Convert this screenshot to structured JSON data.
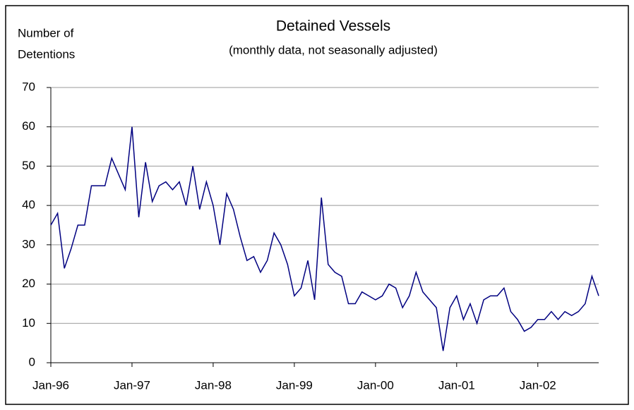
{
  "chart_data": {
    "type": "line",
    "title": "Detained Vessels",
    "subtitle": "(monthly data, not seasonally adjusted)",
    "ylabel": [
      "Number of",
      "Detentions"
    ],
    "categories": [
      "Jan-96",
      null,
      null,
      null,
      null,
      null,
      null,
      null,
      null,
      null,
      null,
      null,
      "Jan-97",
      null,
      null,
      null,
      null,
      null,
      null,
      null,
      null,
      null,
      null,
      null,
      "Jan-98",
      null,
      null,
      null,
      null,
      null,
      null,
      null,
      null,
      null,
      null,
      null,
      "Jan-99",
      null,
      null,
      null,
      null,
      null,
      null,
      null,
      null,
      null,
      null,
      null,
      "Jan-00",
      null,
      null,
      null,
      null,
      null,
      null,
      null,
      null,
      null,
      null,
      null,
      "Jan-01",
      null,
      null,
      null,
      null,
      null,
      null,
      null,
      null,
      null,
      null,
      null,
      "Jan-02",
      null,
      null,
      null,
      null,
      null,
      null,
      null,
      null,
      null
    ],
    "series": [
      {
        "name": "Detained Vessels",
        "color": "#000080",
        "values": [
          35,
          38,
          24,
          29,
          35,
          35,
          45,
          45,
          45,
          52,
          48,
          44,
          60,
          37,
          51,
          41,
          45,
          46,
          44,
          46,
          40,
          50,
          39,
          46,
          40,
          30,
          43,
          39,
          32,
          26,
          27,
          23,
          26,
          33,
          30,
          25,
          17,
          19,
          26,
          16,
          42,
          25,
          23,
          22,
          15,
          15,
          18,
          17,
          16,
          17,
          20,
          19,
          14,
          17,
          23,
          18,
          16,
          14,
          3,
          14,
          17,
          11,
          15,
          10,
          16,
          17,
          17,
          19,
          13,
          11,
          8,
          9,
          11,
          11,
          13,
          11,
          13,
          12,
          13,
          15,
          22,
          17
        ]
      }
    ],
    "ylim": [
      0,
      70
    ],
    "yticks": [
      0,
      10,
      20,
      30,
      40,
      50,
      60,
      70
    ],
    "grid": true
  }
}
